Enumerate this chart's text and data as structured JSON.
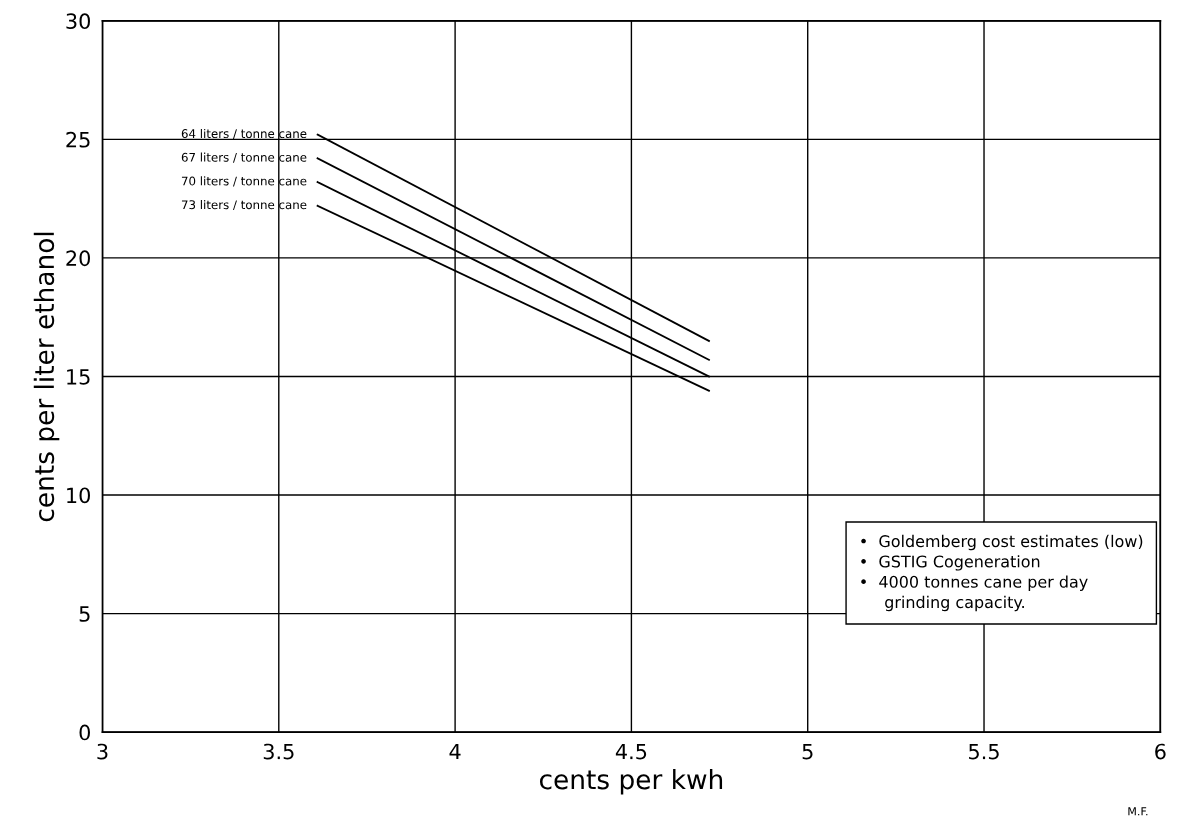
{
  "chart_data": {
    "type": "line",
    "xlabel": "cents per kwh",
    "ylabel": "cents per liter ethanol",
    "xlim": [
      3,
      6
    ],
    "xticks": [
      3,
      3.5,
      4,
      4.5,
      5,
      5.5,
      6
    ],
    "ylim": [
      0,
      30
    ],
    "yticks": [
      0,
      5,
      10,
      15,
      20,
      25,
      30
    ],
    "grid": true,
    "legend": false,
    "marker": "none",
    "line_style": "solid",
    "x": [
      3.61,
      4.72
    ],
    "series": [
      {
        "name": "64 liters / tonne cane",
        "color": "#000000",
        "values": [
          25.2,
          16.5
        ]
      },
      {
        "name": "67 liters / tonne cane",
        "color": "#000000",
        "values": [
          24.2,
          15.7
        ]
      },
      {
        "name": "70 liters / tonne cane",
        "color": "#000000",
        "values": [
          23.2,
          15.0
        ]
      },
      {
        "name": "73 liters / tonne cane",
        "color": "#000000",
        "values": [
          22.2,
          14.4
        ]
      }
    ],
    "annotations": [
      "•  Goldemberg cost estimates (low)\n•  GSTIG Cogeneration\n•  4000 tonnes cane per day\n     grinding capacity.",
      "M.F."
    ]
  }
}
